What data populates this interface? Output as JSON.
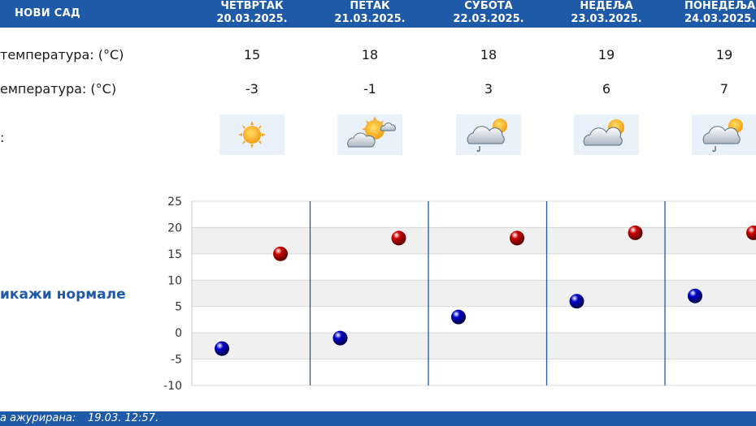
{
  "header": {
    "location": "НОВИ САД",
    "days": [
      {
        "name": "ЧЕТВРТАК",
        "date": "20.03.2025."
      },
      {
        "name": "ПЕТАК",
        "date": "21.03.2025."
      },
      {
        "name": "СУБОТА",
        "date": "22.03.2025."
      },
      {
        "name": "НЕДЕЉА",
        "date": "23.03.2025."
      },
      {
        "name": "ПОНЕДЕЉАК",
        "date": "24.03.2025."
      }
    ]
  },
  "rows": {
    "max_label": "температура: (°C)",
    "min_label": "емпература: (°C)",
    "icon_label": ":",
    "max": [
      "15",
      "18",
      "18",
      "19",
      "19"
    ],
    "min": [
      "-3",
      "-1",
      "3",
      "6",
      "7"
    ],
    "icons": [
      "sunny-icon",
      "partly-cloudy-icon",
      "cloudy-drizzle-icon",
      "partly-cloudy-icon",
      "cloudy-drizzle-icon"
    ]
  },
  "show_normals": "икажи нормале",
  "footer": {
    "label": "а ажурирана:",
    "datetime": "19.03. 12:57."
  },
  "colors": {
    "header_bg": "#1e5aa8",
    "max_marker": "#cc0000",
    "min_marker": "#0000cc",
    "separator": "#1e5aa8"
  },
  "chart_data": {
    "type": "scatter",
    "y_ticks": [
      "25",
      "20",
      "15",
      "10",
      "5",
      "0",
      "-5",
      "-10"
    ],
    "ylim": [
      -10,
      25
    ],
    "grid": "alternating horizontal bands",
    "series": [
      {
        "values": [
          15,
          18,
          18,
          19,
          19
        ],
        "color": "#cc0000"
      },
      {
        "values": [
          -3,
          -1,
          3,
          6,
          7
        ],
        "color": "#0000cc"
      }
    ]
  }
}
